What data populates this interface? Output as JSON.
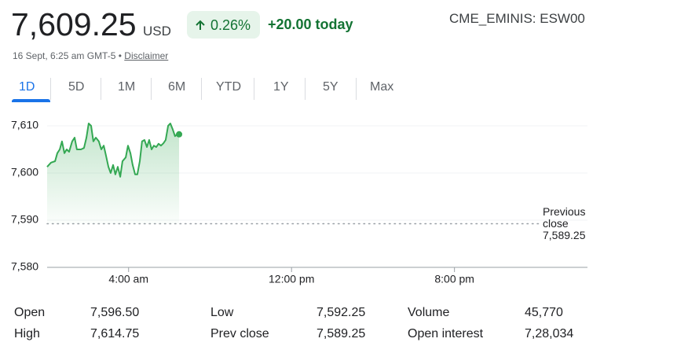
{
  "header": {
    "price": "7,609.25",
    "currency": "USD",
    "change_pct": "0.26%",
    "change_abs": "+20.00 today",
    "ticker": "CME_EMINIS: ESW00",
    "timestamp": "16 Sept, 6:25 am GMT-5 •",
    "disclaimer": "Disclaimer"
  },
  "tabs": [
    "1D",
    "5D",
    "1M",
    "6M",
    "YTD",
    "1Y",
    "5Y",
    "Max"
  ],
  "chart_data": {
    "type": "line",
    "color": "#34a853",
    "x": [
      0,
      0.19,
      0.39,
      0.5,
      0.62,
      0.73,
      0.85,
      0.96,
      1.08,
      1.23,
      1.35,
      1.46,
      1.66,
      1.81,
      1.93,
      2.04,
      2.16,
      2.27,
      2.39,
      2.54,
      2.66,
      2.78,
      2.89,
      3.01,
      3.12,
      3.24,
      3.35,
      3.47,
      3.59,
      3.7,
      3.86,
      3.97,
      4.09,
      4.2,
      4.32,
      4.43,
      4.55,
      4.66,
      4.78,
      4.9,
      5.01,
      5.13,
      5.24,
      5.36,
      5.47,
      5.59,
      5.71,
      5.82,
      5.94,
      6.05,
      6.17,
      6.28,
      6.4,
      6.48
    ],
    "values": [
      7601.3,
      7602.2,
      7602.5,
      7604.2,
      7605,
      7606.7,
      7604.2,
      7605,
      7604.5,
      7606.7,
      7607.5,
      7605,
      7605,
      7605.3,
      7607.5,
      7610.5,
      7610,
      7606.7,
      7607.5,
      7606.7,
      7605,
      7605.8,
      7603.7,
      7601.3,
      7600,
      7601.7,
      7599.7,
      7601.3,
      7599.2,
      7602.5,
      7603.3,
      7605.8,
      7604.2,
      7601.7,
      7599.7,
      7599.7,
      7602.5,
      7606.7,
      7607,
      7605.5,
      7607,
      7605,
      7605.8,
      7605.5,
      7606.2,
      7605.8,
      7606.3,
      7607,
      7610,
      7610.5,
      7609.2,
      7607.8,
      7608.3,
      7608.2
    ],
    "xlim": [
      0,
      26.53
    ],
    "xticks": [
      {
        "value": 4,
        "label": "4:00 am"
      },
      {
        "value": 12,
        "label": "12:00 pm"
      },
      {
        "value": 20,
        "label": "8:00 pm"
      }
    ],
    "ylim": [
      7580,
      7612
    ],
    "yticks": [
      {
        "value": 7610,
        "label": "7,610"
      },
      {
        "value": 7600,
        "label": "7,600"
      },
      {
        "value": 7590,
        "label": "7,590"
      },
      {
        "value": 7580,
        "label": "7,580"
      }
    ],
    "grid": true,
    "reference": {
      "label": "Previous close",
      "value": 7589.25,
      "value_label": "7,589.25"
    }
  },
  "stats": {
    "rows": [
      [
        "Open",
        "7,596.50",
        "Low",
        "7,592.25",
        "Volume",
        "45,770"
      ],
      [
        "High",
        "7,614.75",
        "Prev close",
        "7,589.25",
        "Open interest",
        "7,28,034"
      ]
    ]
  }
}
